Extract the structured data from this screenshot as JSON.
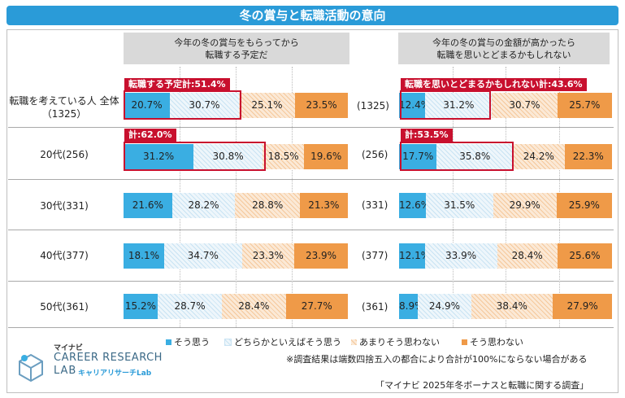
{
  "title": "冬の賞与と転職活動の意向",
  "col_headers": [
    "今年の冬の賞与をもらってから\n転職する予定だ",
    "今年の冬の賞与の金額が高かったら\n転職を思いとどまるかもしれない"
  ],
  "row_labels": [
    "転職を考えている人 全体\n（1325）",
    "20代(256)",
    "30代(331)",
    "40代(377)",
    "50代(361)"
  ],
  "right_n_labels": [
    "(1325)",
    "(256)",
    "(331)",
    "(377)",
    "(361)"
  ],
  "callouts": {
    "left_total": "転職する予定計:51.4%",
    "left_20s": "計:62.0%",
    "right_total": "転職を思いとどまるかもしれない計:43.6%",
    "right_20s": "計:53.5%"
  },
  "legend": [
    "そう思う",
    "どちらかといえばそう思う",
    "あまりそう思わない",
    "そう思わない"
  ],
  "colors": {
    "title_bg": "#2a9bd8",
    "strong_yes": "#3aaee2",
    "strong_no": "#ef9a48",
    "callout": "#c8102e"
  },
  "note": "※調査結果は端数四捨五入の都合により合計が100%にならない場合がある",
  "source": "「マイナビ 2025年冬ボーナスと転職に関する調査」",
  "logo": {
    "top": "マイナビ",
    "main1": "CAREER RESEARCH",
    "main2": "LAB",
    "sub": "キャリアリサーチLab"
  },
  "chart_data": [
    {
      "type": "bar",
      "stacked": "100%",
      "orientation": "horizontal",
      "title": "今年の冬の賞与をもらってから転職する予定だ",
      "categories": [
        "転職を考えている人 全体（1325）",
        "20代(256)",
        "30代(331)",
        "40代(377)",
        "50代(361)"
      ],
      "series": [
        {
          "name": "そう思う",
          "values": [
            20.7,
            31.2,
            21.6,
            18.1,
            15.2
          ]
        },
        {
          "name": "どちらかといえばそう思う",
          "values": [
            30.7,
            30.8,
            28.2,
            34.7,
            28.7
          ]
        },
        {
          "name": "あまりそう思わない",
          "values": [
            25.1,
            18.5,
            28.8,
            23.3,
            28.4
          ]
        },
        {
          "name": "そう思わない",
          "values": [
            23.5,
            19.6,
            21.3,
            23.9,
            27.7
          ]
        }
      ]
    },
    {
      "type": "bar",
      "stacked": "100%",
      "orientation": "horizontal",
      "title": "今年の冬の賞与の金額が高かったら転職を思いとどまるかもしれない",
      "categories": [
        "(1325)",
        "(256)",
        "(331)",
        "(377)",
        "(361)"
      ],
      "series": [
        {
          "name": "そう思う",
          "values": [
            12.4,
            17.7,
            12.6,
            12.1,
            8.9
          ]
        },
        {
          "name": "どちらかといえばそう思う",
          "values": [
            31.2,
            35.8,
            31.5,
            33.9,
            24.9
          ]
        },
        {
          "name": "あまりそう思わない",
          "values": [
            30.7,
            24.2,
            29.9,
            28.4,
            38.4
          ]
        },
        {
          "name": "そう思わない",
          "values": [
            25.7,
            22.3,
            25.9,
            25.6,
            27.9
          ]
        }
      ]
    }
  ]
}
